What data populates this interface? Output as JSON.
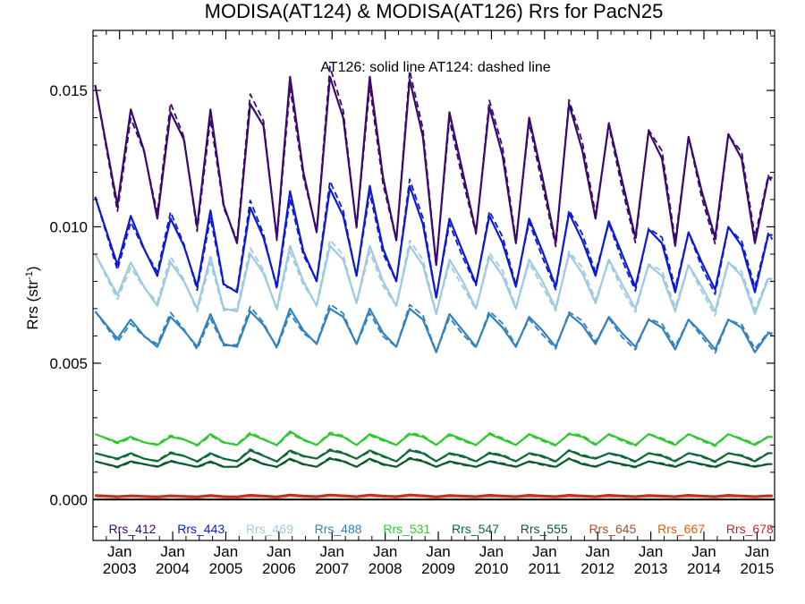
{
  "chart_data": {
    "type": "line",
    "title": "MODISA(AT124) & MODISA(AT126)  Rrs for PacN25",
    "ylabel": "Rrs (str",
    "ylabel_superscript": "-1",
    "ylabel_close": ")",
    "annotation": "AT126: solid line   AT124: dashed line",
    "xlim": [
      2002.5,
      2015.33
    ],
    "ylim": [
      -0.0015,
      0.0172
    ],
    "grid": false,
    "legend": "bottom",
    "y_ticks": [
      {
        "value": 0.0,
        "label": "0.000"
      },
      {
        "value": 0.005,
        "label": "0.005"
      },
      {
        "value": 0.01,
        "label": "0.010"
      },
      {
        "value": 0.015,
        "label": "0.015"
      }
    ],
    "x_ticks": [
      {
        "value": 2003.0,
        "month": "Jan",
        "year": "2003"
      },
      {
        "value": 2004.0,
        "month": "Jan",
        "year": "2004"
      },
      {
        "value": 2005.0,
        "month": "Jan",
        "year": "2005"
      },
      {
        "value": 2006.0,
        "month": "Jan",
        "year": "2006"
      },
      {
        "value": 2007.0,
        "month": "Jan",
        "year": "2007"
      },
      {
        "value": 2008.0,
        "month": "Jan",
        "year": "2008"
      },
      {
        "value": 2009.0,
        "month": "Jan",
        "year": "2009"
      },
      {
        "value": 2010.0,
        "month": "Jan",
        "year": "2010"
      },
      {
        "value": 2011.0,
        "month": "Jan",
        "year": "2011"
      },
      {
        "value": 2012.0,
        "month": "Jan",
        "year": "2012"
      },
      {
        "value": 2013.0,
        "month": "Jan",
        "year": "2013"
      },
      {
        "value": 2014.0,
        "month": "Jan",
        "year": "2014"
      },
      {
        "value": 2015.0,
        "month": "Jan",
        "year": "2015"
      }
    ],
    "x": [
      2002.54,
      2002.96,
      2003.21,
      2003.46,
      2003.71,
      2003.96,
      2004.21,
      2004.46,
      2004.71,
      2004.96,
      2005.21,
      2005.46,
      2005.71,
      2005.96,
      2006.21,
      2006.46,
      2006.71,
      2006.96,
      2007.21,
      2007.46,
      2007.71,
      2007.96,
      2008.21,
      2008.46,
      2008.71,
      2008.96,
      2009.21,
      2009.46,
      2009.71,
      2009.96,
      2010.21,
      2010.46,
      2010.71,
      2010.96,
      2011.21,
      2011.46,
      2011.71,
      2011.96,
      2012.21,
      2012.46,
      2012.71,
      2012.96,
      2013.21,
      2013.46,
      2013.71,
      2013.96,
      2014.21,
      2014.46,
      2014.71,
      2014.96,
      2015.21,
      2015.29
    ],
    "series": [
      {
        "name": "Rrs_412",
        "color": "#3a0a6e",
        "values": [
          0.0152,
          0.0108,
          0.0143,
          0.0128,
          0.0103,
          0.0142,
          0.0132,
          0.01,
          0.0143,
          0.0108,
          0.0094,
          0.0145,
          0.0137,
          0.0096,
          0.0155,
          0.012,
          0.0098,
          0.0155,
          0.014,
          0.01,
          0.0155,
          0.0118,
          0.0095,
          0.0154,
          0.0133,
          0.0086,
          0.0142,
          0.012,
          0.0098,
          0.0144,
          0.0126,
          0.0094,
          0.014,
          0.0118,
          0.0094,
          0.0145,
          0.0128,
          0.0103,
          0.0138,
          0.0117,
          0.0096,
          0.0135,
          0.0125,
          0.0093,
          0.0133,
          0.0113,
          0.0096,
          0.0134,
          0.0125,
          0.0094,
          0.0118,
          0.0118
        ]
      },
      {
        "name": "Rrs_443",
        "color": "#0b1ad6",
        "values": [
          0.0111,
          0.0086,
          0.0104,
          0.0092,
          0.0082,
          0.0103,
          0.0093,
          0.0078,
          0.0106,
          0.0079,
          0.0076,
          0.0107,
          0.0096,
          0.0078,
          0.0113,
          0.0091,
          0.008,
          0.0114,
          0.0104,
          0.0082,
          0.0115,
          0.0092,
          0.008,
          0.0115,
          0.0101,
          0.0074,
          0.0103,
          0.0091,
          0.0079,
          0.0104,
          0.0094,
          0.0078,
          0.0103,
          0.0091,
          0.0078,
          0.0105,
          0.0095,
          0.0082,
          0.0102,
          0.009,
          0.0078,
          0.0099,
          0.0094,
          0.0076,
          0.0098,
          0.0087,
          0.0077,
          0.01,
          0.0093,
          0.0076,
          0.0097,
          0.0097
        ]
      },
      {
        "name": "Rrs_469",
        "color": "#9ecae1",
        "values": [
          0.009,
          0.0075,
          0.0087,
          0.0078,
          0.0071,
          0.0087,
          0.008,
          0.007,
          0.0089,
          0.007,
          0.0069,
          0.009,
          0.0083,
          0.007,
          0.0093,
          0.008,
          0.0071,
          0.0093,
          0.0088,
          0.0072,
          0.0093,
          0.008,
          0.0071,
          0.0093,
          0.0086,
          0.0068,
          0.0088,
          0.008,
          0.007,
          0.0089,
          0.0082,
          0.007,
          0.0088,
          0.008,
          0.007,
          0.009,
          0.0083,
          0.0072,
          0.0088,
          0.0079,
          0.007,
          0.0086,
          0.0082,
          0.0069,
          0.0086,
          0.0078,
          0.0069,
          0.0087,
          0.0082,
          0.0068,
          0.0081,
          0.0081
        ]
      },
      {
        "name": "Rrs_488",
        "color": "#3182bd",
        "values": [
          0.0069,
          0.0059,
          0.0066,
          0.006,
          0.0056,
          0.0067,
          0.0062,
          0.0056,
          0.0068,
          0.0057,
          0.0056,
          0.0069,
          0.0064,
          0.0056,
          0.007,
          0.0062,
          0.0057,
          0.007,
          0.0067,
          0.0057,
          0.007,
          0.0061,
          0.0056,
          0.007,
          0.0066,
          0.0054,
          0.0068,
          0.0062,
          0.0056,
          0.0068,
          0.0063,
          0.0056,
          0.0067,
          0.0062,
          0.0056,
          0.0068,
          0.0064,
          0.0057,
          0.0067,
          0.0061,
          0.0056,
          0.0066,
          0.0063,
          0.0055,
          0.0066,
          0.0061,
          0.0055,
          0.0066,
          0.0063,
          0.0054,
          0.0061,
          0.0061
        ]
      },
      {
        "name": "Rrs_531",
        "color": "#31c831",
        "values": [
          0.0024,
          0.0021,
          0.0023,
          0.0021,
          0.002,
          0.0023,
          0.0022,
          0.002,
          0.0024,
          0.0021,
          0.002,
          0.0024,
          0.0022,
          0.002,
          0.0025,
          0.0022,
          0.002,
          0.0024,
          0.0023,
          0.002,
          0.0024,
          0.0022,
          0.002,
          0.0024,
          0.0023,
          0.002,
          0.0024,
          0.0022,
          0.002,
          0.0024,
          0.0022,
          0.002,
          0.0024,
          0.0022,
          0.002,
          0.0024,
          0.0023,
          0.002,
          0.0024,
          0.0022,
          0.002,
          0.0024,
          0.0022,
          0.002,
          0.0024,
          0.0022,
          0.002,
          0.0024,
          0.0022,
          0.002,
          0.0023,
          0.0023
        ]
      },
      {
        "name": "Rrs_547",
        "color": "#0e6b3a",
        "values": [
          0.0017,
          0.0015,
          0.0017,
          0.0015,
          0.0014,
          0.0017,
          0.0016,
          0.0014,
          0.0017,
          0.0015,
          0.0014,
          0.0018,
          0.0016,
          0.0014,
          0.0018,
          0.0016,
          0.0015,
          0.0018,
          0.0017,
          0.0015,
          0.0018,
          0.0016,
          0.0014,
          0.0018,
          0.0017,
          0.0014,
          0.0017,
          0.0016,
          0.0014,
          0.0017,
          0.0016,
          0.0014,
          0.0017,
          0.0016,
          0.0014,
          0.0018,
          0.0016,
          0.0015,
          0.0017,
          0.0016,
          0.0014,
          0.0017,
          0.0016,
          0.0014,
          0.0017,
          0.0016,
          0.0014,
          0.0017,
          0.0016,
          0.0014,
          0.0017,
          0.0017
        ]
      },
      {
        "name": "Rrs_555",
        "color": "#0b5a2e",
        "values": [
          0.0014,
          0.0012,
          0.0014,
          0.0013,
          0.0012,
          0.0014,
          0.0013,
          0.0012,
          0.0014,
          0.0012,
          0.0012,
          0.0015,
          0.0013,
          0.0012,
          0.0015,
          0.0013,
          0.0012,
          0.0015,
          0.0014,
          0.0012,
          0.0015,
          0.0013,
          0.0012,
          0.0015,
          0.0014,
          0.0012,
          0.0014,
          0.0013,
          0.0012,
          0.0014,
          0.0013,
          0.0012,
          0.0014,
          0.0013,
          0.0012,
          0.0015,
          0.0013,
          0.0012,
          0.0014,
          0.0013,
          0.0012,
          0.0014,
          0.0013,
          0.0012,
          0.0014,
          0.0013,
          0.0012,
          0.0014,
          0.0013,
          0.0012,
          0.0013,
          0.0013
        ]
      },
      {
        "name": "Rrs_645",
        "color": "#a0522d",
        "values": [
          0.00015,
          0.0001,
          0.00013,
          0.00011,
          9e-05,
          0.00013,
          0.00011,
          9e-05,
          0.00014,
          0.0001,
          9e-05,
          0.00015,
          0.00012,
          9e-05,
          0.00016,
          0.00012,
          0.0001,
          0.00016,
          0.00013,
          0.0001,
          0.00016,
          0.00012,
          0.0001,
          0.00016,
          0.00013,
          9e-05,
          0.00014,
          0.00012,
          0.0001,
          0.00015,
          0.00012,
          0.0001,
          0.00015,
          0.00012,
          0.0001,
          0.00015,
          0.00012,
          0.0001,
          0.00015,
          0.00012,
          0.0001,
          0.00014,
          0.00012,
          0.0001,
          0.00015,
          0.00012,
          0.0001,
          0.00015,
          0.00012,
          0.0001,
          0.00013,
          0.00013
        ]
      },
      {
        "name": "Rrs_667",
        "color": "#d95f0e",
        "values": [
          0.00012,
          8e-05,
          0.00011,
          9e-05,
          7e-05,
          0.00011,
          9e-05,
          7e-05,
          0.00012,
          8e-05,
          7e-05,
          0.00012,
          0.0001,
          7e-05,
          0.00013,
          0.0001,
          8e-05,
          0.00013,
          0.00011,
          8e-05,
          0.00013,
          0.0001,
          8e-05,
          0.00013,
          0.00011,
          7e-05,
          0.00012,
          0.0001,
          8e-05,
          0.00012,
          0.0001,
          8e-05,
          0.00012,
          0.0001,
          8e-05,
          0.00012,
          0.0001,
          8e-05,
          0.00012,
          0.0001,
          8e-05,
          0.00012,
          0.0001,
          8e-05,
          0.00012,
          0.0001,
          8e-05,
          0.00012,
          0.0001,
          8e-05,
          0.00011,
          0.00011
        ]
      },
      {
        "name": "Rrs_678",
        "color": "#c0282d",
        "values": [
          0.00016,
          0.00012,
          0.00015,
          0.00013,
          0.00011,
          0.00015,
          0.00013,
          0.00011,
          0.00016,
          0.00012,
          0.00011,
          0.00017,
          0.00014,
          0.00011,
          0.00018,
          0.00014,
          0.00012,
          0.00018,
          0.00015,
          0.00012,
          0.00018,
          0.00014,
          0.00012,
          0.00018,
          0.00015,
          0.00011,
          0.00016,
          0.00014,
          0.00012,
          0.00017,
          0.00014,
          0.00012,
          0.00017,
          0.00014,
          0.00012,
          0.00017,
          0.00014,
          0.00012,
          0.00017,
          0.00014,
          0.00012,
          0.00016,
          0.00014,
          0.00012,
          0.00017,
          0.00014,
          0.00012,
          0.00017,
          0.00014,
          0.00012,
          0.00015,
          0.00015
        ]
      }
    ]
  }
}
